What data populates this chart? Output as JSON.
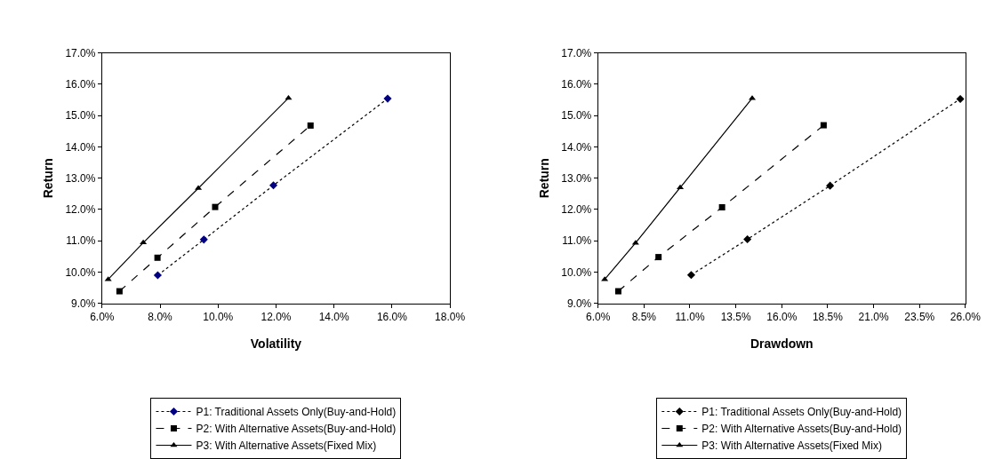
{
  "chart_data": [
    {
      "type": "line",
      "xlabel": "Volatility",
      "ylabel": "Return",
      "legend": "bottom",
      "grid": false,
      "xlim": [
        6,
        18
      ],
      "xticks": [
        {
          "value": 6,
          "label": "6.0%"
        },
        {
          "value": 8,
          "label": "8.0%"
        },
        {
          "value": 10,
          "label": "10.0%"
        },
        {
          "value": 12,
          "label": "12.0%"
        },
        {
          "value": 14,
          "label": "14.0%"
        },
        {
          "value": 16,
          "label": "16.0%"
        },
        {
          "value": 18,
          "label": "18.0%"
        }
      ],
      "ylim": [
        9,
        17
      ],
      "yticks": [
        {
          "value": 9,
          "label": "9.0%"
        },
        {
          "value": 10,
          "label": "10.0%"
        },
        {
          "value": 11,
          "label": "11.0%"
        },
        {
          "value": 12,
          "label": "12.0%"
        },
        {
          "value": 13,
          "label": "13.0%"
        },
        {
          "value": 14,
          "label": "14.0%"
        },
        {
          "value": 15,
          "label": "15.0%"
        },
        {
          "value": 16,
          "label": "16.0%"
        },
        {
          "value": 17,
          "label": "17.0%"
        }
      ],
      "series": [
        {
          "name": "P1: Traditional Assets Only(Buy-and-Hold)",
          "color": "#000080",
          "marker": "diamond",
          "line_style": "dotted",
          "x": [
            7.92,
            9.51,
            11.91,
            15.85
          ],
          "values": [
            9.9,
            11.04,
            12.77,
            15.54
          ]
        },
        {
          "name": "P2: With Alternative Assets(Buy-and-Hold)",
          "color": "#000000",
          "marker": "square",
          "line_style": "dashed",
          "x": [
            6.6,
            7.91,
            9.9,
            13.19
          ],
          "values": [
            9.39,
            10.46,
            12.08,
            14.68
          ]
        },
        {
          "name": "P3: With Alternative Assets(Fixed Mix)",
          "color": "#000000",
          "marker": "triangle",
          "line_style": "solid",
          "x": [
            6.21,
            7.42,
            9.32,
            12.43
          ],
          "values": [
            9.77,
            10.94,
            12.68,
            15.56
          ]
        }
      ]
    },
    {
      "type": "line",
      "xlabel": "Drawdown",
      "ylabel": "Return",
      "legend": "bottom",
      "grid": false,
      "xlim": [
        6,
        26
      ],
      "xticks": [
        {
          "value": 6,
          "label": "6.0%"
        },
        {
          "value": 8.5,
          "label": "8.5%"
        },
        {
          "value": 11,
          "label": "11.0%"
        },
        {
          "value": 13.5,
          "label": "13.5%"
        },
        {
          "value": 16,
          "label": "16.0%"
        },
        {
          "value": 18.5,
          "label": "18.5%"
        },
        {
          "value": 21,
          "label": "21.0%"
        },
        {
          "value": 23.5,
          "label": "23.5%"
        },
        {
          "value": 26,
          "label": "26.0%"
        }
      ],
      "ylim": [
        9,
        17
      ],
      "yticks": [
        {
          "value": 9,
          "label": "9.0%"
        },
        {
          "value": 10,
          "label": "10.0%"
        },
        {
          "value": 11,
          "label": "11.0%"
        },
        {
          "value": 12,
          "label": "12.0%"
        },
        {
          "value": 13,
          "label": "13.0%"
        },
        {
          "value": 14,
          "label": "14.0%"
        },
        {
          "value": 15,
          "label": "15.0%"
        },
        {
          "value": 16,
          "label": "16.0%"
        },
        {
          "value": 17,
          "label": "17.0%"
        }
      ],
      "series": [
        {
          "name": "P1: Traditional Assets Only(Buy-and-Hold)",
          "color": "#000000",
          "marker": "diamond",
          "line_style": "dotted",
          "x": [
            11.07,
            14.13,
            18.63,
            25.72
          ],
          "values": [
            9.91,
            11.05,
            12.76,
            15.53
          ]
        },
        {
          "name": "P2: With Alternative Assets(Buy-and-Hold)",
          "color": "#000000",
          "marker": "square",
          "line_style": "dashed",
          "x": [
            7.1,
            9.29,
            12.75,
            18.28
          ],
          "values": [
            9.39,
            10.48,
            12.07,
            14.69
          ]
        },
        {
          "name": "P3: With Alternative Assets(Fixed Mix)",
          "color": "#000000",
          "marker": "triangle",
          "line_style": "solid",
          "x": [
            6.36,
            8.04,
            10.47,
            14.39
          ],
          "values": [
            9.77,
            10.93,
            12.7,
            15.55
          ]
        }
      ]
    }
  ]
}
